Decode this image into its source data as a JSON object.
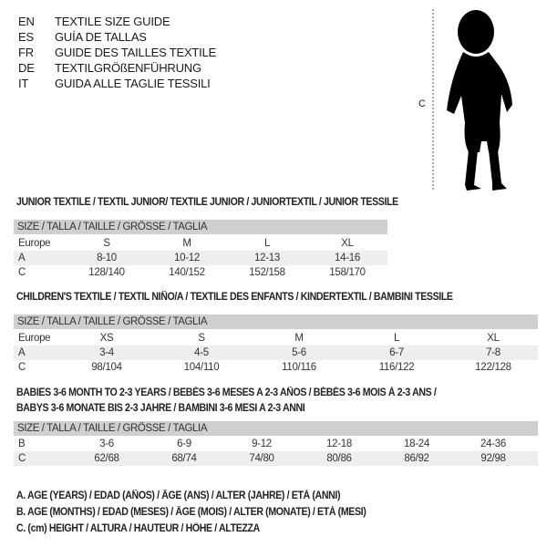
{
  "languages": [
    {
      "code": "EN",
      "text": "TEXTILE SIZE GUIDE"
    },
    {
      "code": "ES",
      "text": "GUÍA DE TALLAS"
    },
    {
      "code": "FR",
      "text": "GUIDE DES TAILLES TEXTILE"
    },
    {
      "code": "DE",
      "text": "TEXTILGRÖßENFÜHRUNG"
    },
    {
      "code": "IT",
      "text": "GUIDA ALLE TAGLIE TESSILI"
    }
  ],
  "figure": {
    "label": "C"
  },
  "junior": {
    "title": "JUNIOR TEXTILE / TEXTIL JUNIOR/ TEXTILE JUNIOR / JUNIORTEXTIL / JUNIOR TESSILE",
    "header": "SIZE / TALLA / TAILLE / GRÖSSE / TAGLIA",
    "rows": [
      {
        "label": "Europe",
        "values": [
          "S",
          "M",
          "L",
          "XL"
        ]
      },
      {
        "label": "A",
        "values": [
          "8-10",
          "10-12",
          "12-13",
          "14-16"
        ]
      },
      {
        "label": "C",
        "values": [
          "128/140",
          "140/152",
          "152/158",
          "158/170"
        ]
      }
    ]
  },
  "children": {
    "title": "CHILDREN'S TEXTILE / TEXTIL NIÑO/A / TEXTILE DES ENFANTS / KINDERTEXTIL / BAMBINI TESSILE",
    "header": "SIZE / TALLA / TAILLE / GRÖSSE / TAGLIA",
    "rows": [
      {
        "label": "Europe",
        "values": [
          "XS",
          "S",
          "M",
          "L",
          "XL"
        ]
      },
      {
        "label": "A",
        "values": [
          "3-4",
          "4-5",
          "5-6",
          "6-7",
          "7-8"
        ]
      },
      {
        "label": "C",
        "values": [
          "98/104",
          "104/110",
          "110/116",
          "116/122",
          "122/128"
        ]
      }
    ]
  },
  "babies": {
    "title_line1": "BABIES 3-6 MONTH TO 2-3 YEARS / BEBÉS 3-6 MESES A 2-3 AÑOS / BÉBÉS 3-6 MOIS À 2-3 ANS /",
    "title_line2": "BABYS 3-6 MONATE BIS 2-3 JAHRE / BAMBINI 3-6 MESI A 2-3 ANNI",
    "header": "SIZE / TALLA / TAILLE / GRÖSSE / TAGLIA",
    "rows": [
      {
        "label": "B",
        "values": [
          "3-6",
          "6-9",
          "9-12",
          "12-18",
          "18-24",
          "24-36"
        ]
      },
      {
        "label": "C",
        "values": [
          "62/68",
          "68/74",
          "74/80",
          "80/86",
          "86/92",
          "92/98"
        ]
      }
    ]
  },
  "legend": [
    "A. AGE (YEARS) / EDAD (AÑOS) / ÂGE (ANS) / ALTER (JAHRE) / ETÀ (ANNI)",
    "B. AGE (MONTHS) / EDAD (MESES) / ÂGE (MOIS) / ALTER (MONATE) / ETÀ (MESI)",
    "C. (cm) HEIGHT / ALTURA / HAUTEUR / HÖHE / ALTEZZA"
  ]
}
